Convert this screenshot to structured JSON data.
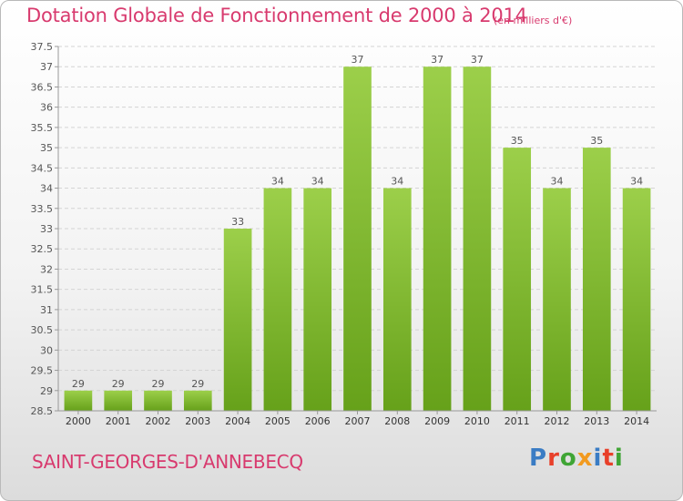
{
  "title": "Dotation Globale de Fonctionnement de 2000 à 2014",
  "subtitle": "(en milliers d'€)",
  "commune": "SAINT-GEORGES-D'ANNEBECQ",
  "logo": {
    "text": "Proxiti",
    "letter_colors": [
      "#3a7cc4",
      "#e8402a",
      "#3fa535",
      "#f29a1f",
      "#3a7cc4",
      "#e8402a",
      "#3fa535"
    ]
  },
  "colors": {
    "accent": "#d83a6e",
    "bar_top": "#9ccf4a",
    "bar_bottom": "#66a11a"
  },
  "chart_data": {
    "type": "bar",
    "categories": [
      "2000",
      "2001",
      "2002",
      "2003",
      "2004",
      "2005",
      "2006",
      "2007",
      "2008",
      "2009",
      "2010",
      "2011",
      "2012",
      "2013",
      "2014"
    ],
    "values": [
      29,
      29,
      29,
      29,
      33,
      34,
      34,
      37,
      34,
      37,
      37,
      35,
      34,
      35,
      34
    ],
    "ylim": [
      28.5,
      37.5
    ],
    "yticks": [
      "28.5",
      "29",
      "29.5",
      "30",
      "30.5",
      "31",
      "31.5",
      "32",
      "32.5",
      "33",
      "33.5",
      "34",
      "34.5",
      "35",
      "35.5",
      "36",
      "36.5",
      "37",
      "37.5"
    ],
    "grid": true,
    "data_labels": true
  }
}
